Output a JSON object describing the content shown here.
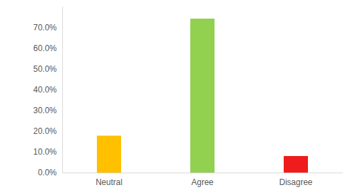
{
  "chart_data": {
    "type": "bar",
    "categories": [
      "Neutral",
      "Agree",
      "Disagree"
    ],
    "values": [
      17.8,
      74.3,
      8.0
    ],
    "colors": [
      "#ffc000",
      "#92d050",
      "#ee1c1c"
    ],
    "ylim": [
      0,
      80
    ],
    "yticks": [
      {
        "value": 0,
        "label": "0.0%"
      },
      {
        "value": 10,
        "label": "10.0%"
      },
      {
        "value": 20,
        "label": "20.0%"
      },
      {
        "value": 30,
        "label": "30.0%"
      },
      {
        "value": 40,
        "label": "40.0%"
      },
      {
        "value": 50,
        "label": "50.0%"
      },
      {
        "value": 60,
        "label": "60.0%"
      },
      {
        "value": 70,
        "label": "70.0%"
      }
    ],
    "grid": false
  }
}
